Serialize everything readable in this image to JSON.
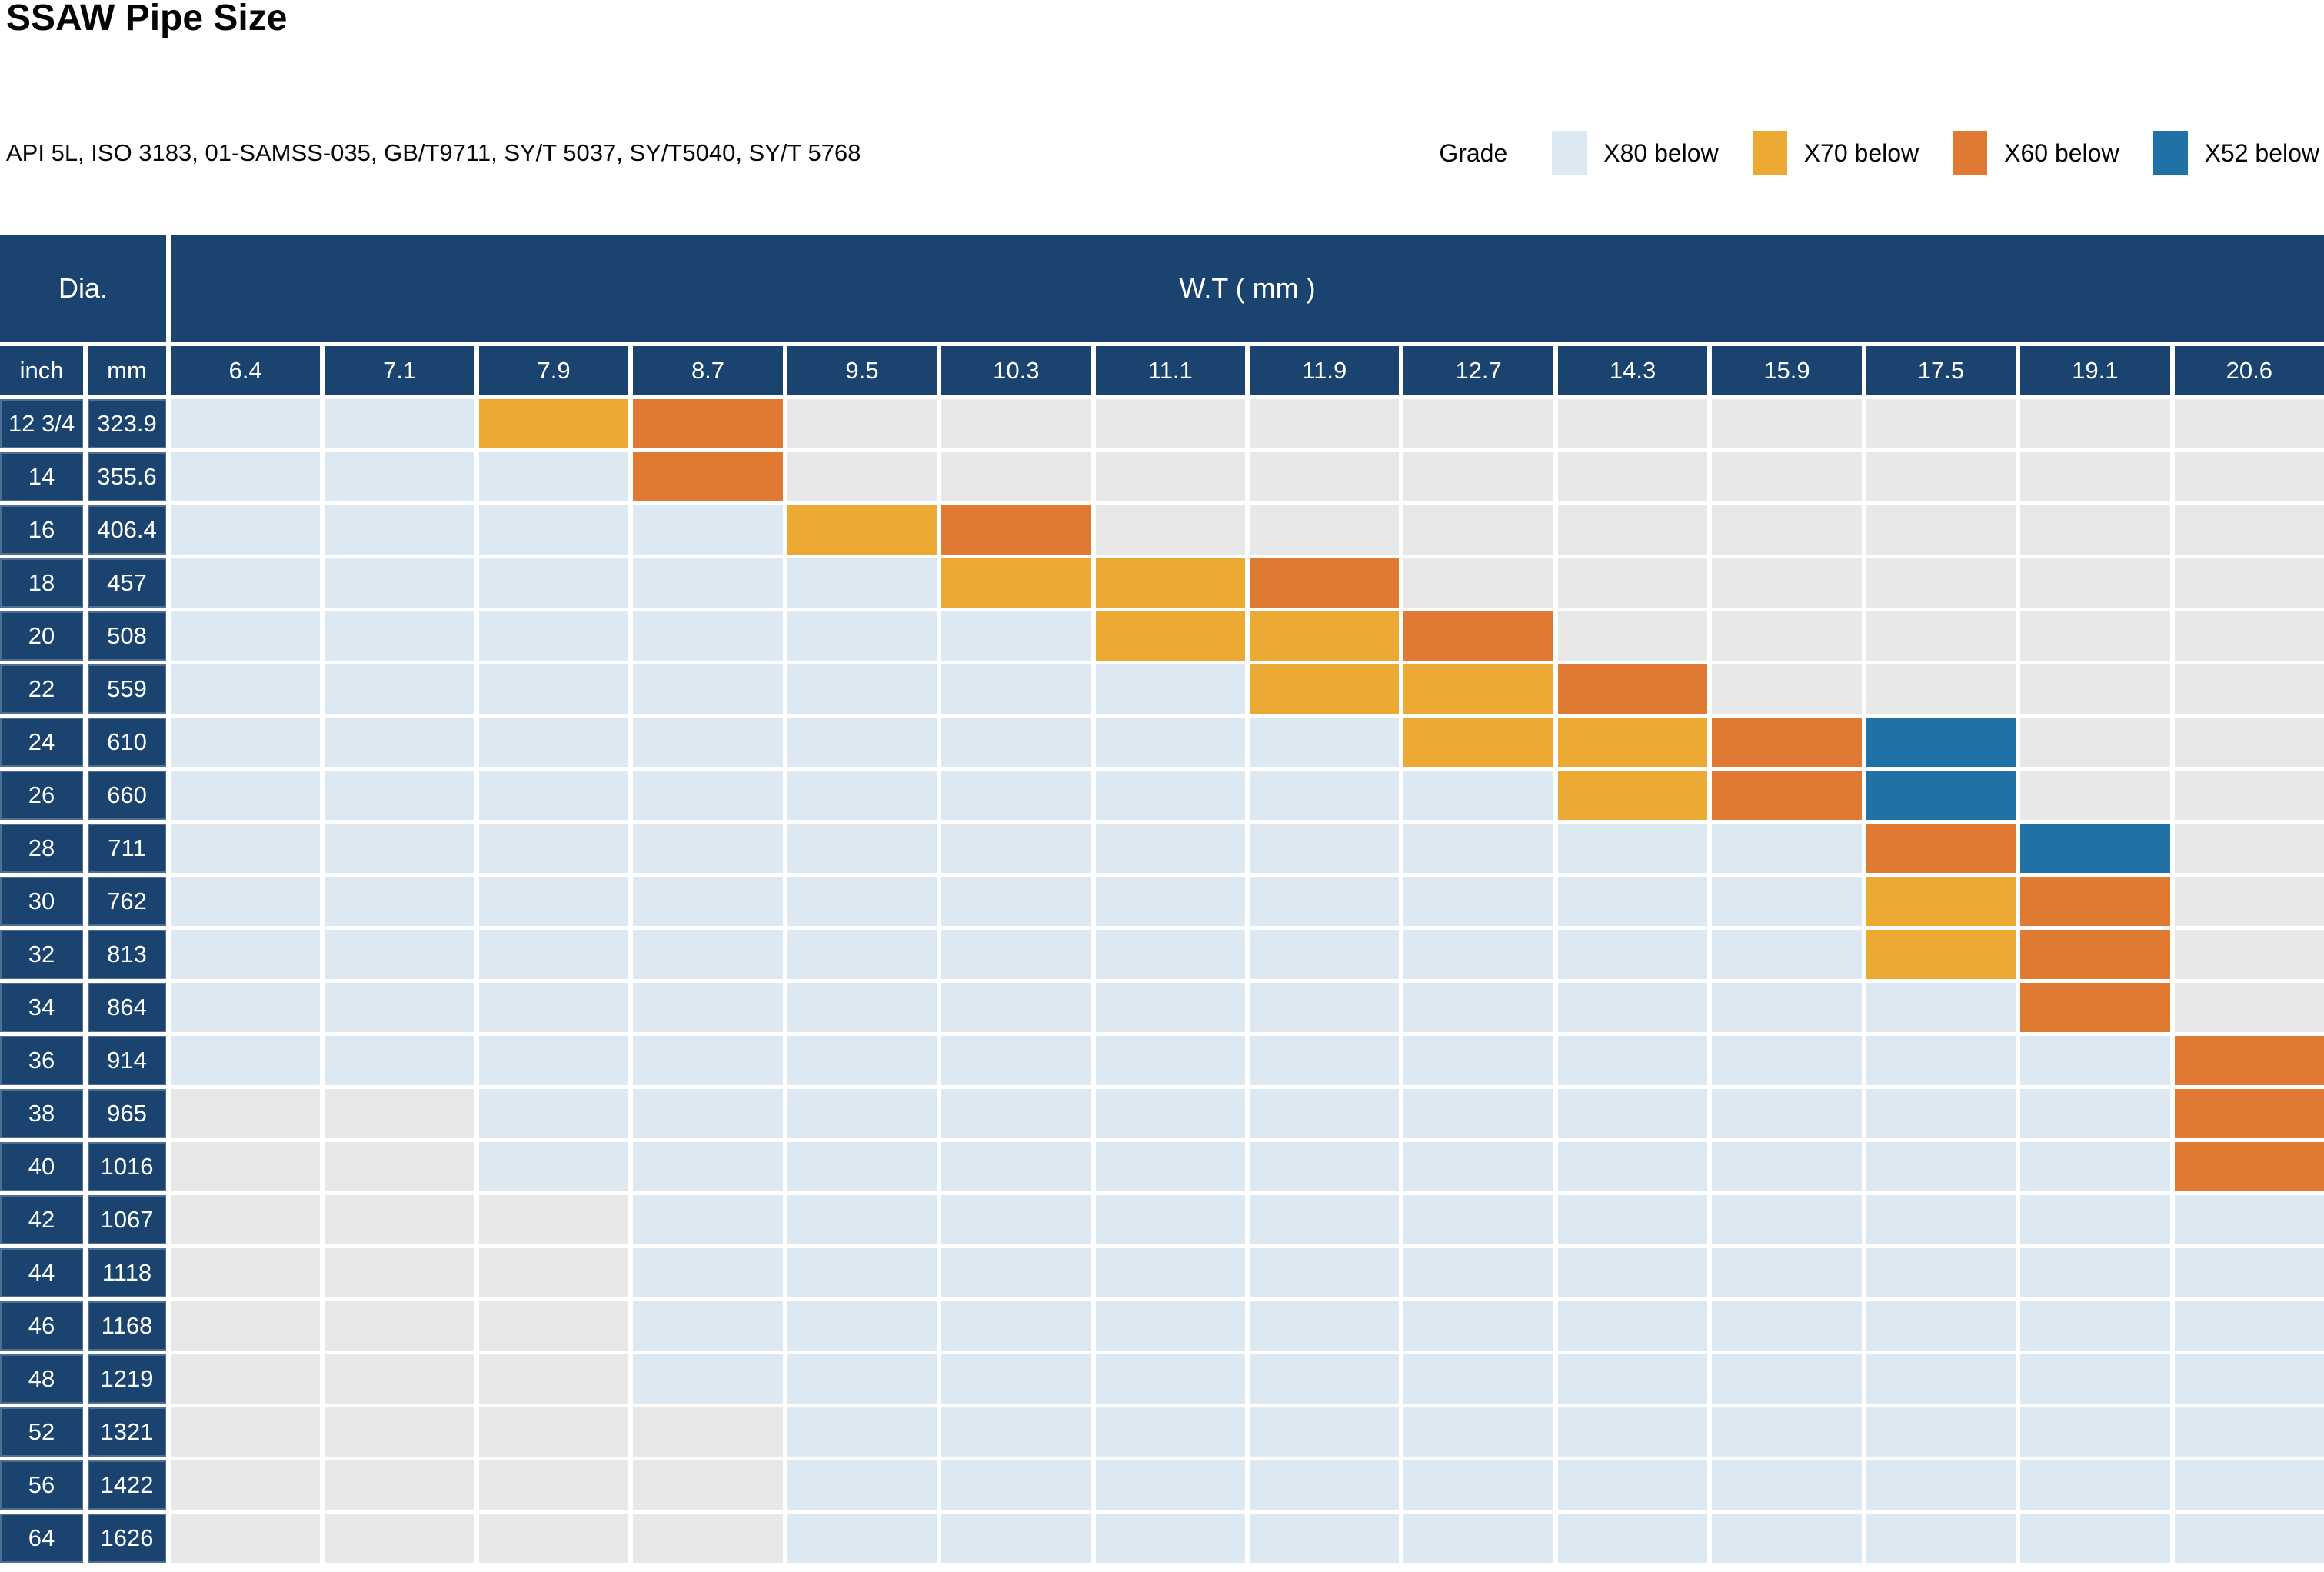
{
  "page_title": "SSAW Pipe Size",
  "standards_line": "API 5L, ISO 3183, 01-SAMSS-035, GB/T9711, SY/T 5037, SY/T5040, SY/T 5768",
  "legend": {
    "label": "Grade",
    "items": [
      {
        "label": "X80 below",
        "code": "L",
        "color": "#dce9f3"
      },
      {
        "label": "X70 below",
        "code": "Y",
        "color": "#eba833"
      },
      {
        "label": "X60 below",
        "code": "O",
        "color": "#e07a33"
      },
      {
        "label": "X52 below",
        "code": "B",
        "color": "#2071a5"
      }
    ]
  },
  "table": {
    "dia_header": "Dia.",
    "wt_header": "W.T ( mm )",
    "inch_label": "inch",
    "mm_label": "mm"
  },
  "colors": {
    "header_navy": "#1a446f",
    "text_on_navy": "#ffffff",
    "grid_gap": "#ffffff",
    "grade_x80": "#dce9f3",
    "grade_x70": "#eba833",
    "grade_x60": "#e07a33",
    "grade_x52": "#2071a5",
    "empty": "#e8e8e9"
  },
  "chart_data": {
    "type": "table",
    "title": "SSAW Pipe Size",
    "x_label": "W.T ( mm )",
    "y_label": "Dia.",
    "wt_columns_mm": [
      "6.4",
      "7.1",
      "7.9",
      "8.7",
      "9.5",
      "10.3",
      "11.1",
      "11.9",
      "12.7",
      "14.3",
      "15.9",
      "17.5",
      "19.1",
      "20.6"
    ],
    "code_legend": {
      "L": "X80 below",
      "Y": "X70 below",
      "O": "X60 below",
      "B": "X52 below",
      "G": "blank / not offered"
    },
    "rows": [
      {
        "inch": "12 3/4",
        "mm": "323.9",
        "cells": "LLYOGGGGGGGGGG"
      },
      {
        "inch": "14",
        "mm": "355.6",
        "cells": "LLLOGGGGGGGGGG"
      },
      {
        "inch": "16",
        "mm": "406.4",
        "cells": "LLLLYOGGGGGGGG"
      },
      {
        "inch": "18",
        "mm": "457",
        "cells": "LLLLLYYOGGGGGG"
      },
      {
        "inch": "20",
        "mm": "508",
        "cells": "LLLLLLYYOGGGGG"
      },
      {
        "inch": "22",
        "mm": "559",
        "cells": "LLLLLLLYYOGGGG"
      },
      {
        "inch": "24",
        "mm": "610",
        "cells": "LLLLLLLLYYOBGG"
      },
      {
        "inch": "26",
        "mm": "660",
        "cells": "LLLLLLLLLYOBGG"
      },
      {
        "inch": "28",
        "mm": "711",
        "cells": "LLLLLLLLLLLOBG"
      },
      {
        "inch": "30",
        "mm": "762",
        "cells": "LLLLLLLLLLLYOG"
      },
      {
        "inch": "32",
        "mm": "813",
        "cells": "LLLLLLLLLLLYOG"
      },
      {
        "inch": "34",
        "mm": "864",
        "cells": "LLLLLLLLLLLLOG"
      },
      {
        "inch": "36",
        "mm": "914",
        "cells": "LLLLLLLLLLLLLO"
      },
      {
        "inch": "38",
        "mm": "965",
        "cells": "GGLLLLLLLLLLLO"
      },
      {
        "inch": "40",
        "mm": "1016",
        "cells": "GGLLLLLLLLLLLO"
      },
      {
        "inch": "42",
        "mm": "1067",
        "cells": "GGGLLLLLLLLLLL"
      },
      {
        "inch": "44",
        "mm": "1118",
        "cells": "GGGLLLLLLLLLLL"
      },
      {
        "inch": "46",
        "mm": "1168",
        "cells": "GGGLLLLLLLLLLL"
      },
      {
        "inch": "48",
        "mm": "1219",
        "cells": "GGGLLLLLLLLLLL"
      },
      {
        "inch": "52",
        "mm": "1321",
        "cells": "GGGGLLLLLLLLLL"
      },
      {
        "inch": "56",
        "mm": "1422",
        "cells": "GGGGLLLLLLLLLL"
      },
      {
        "inch": "64",
        "mm": "1626",
        "cells": "GGGGLLLLLLLLLL"
      }
    ]
  }
}
